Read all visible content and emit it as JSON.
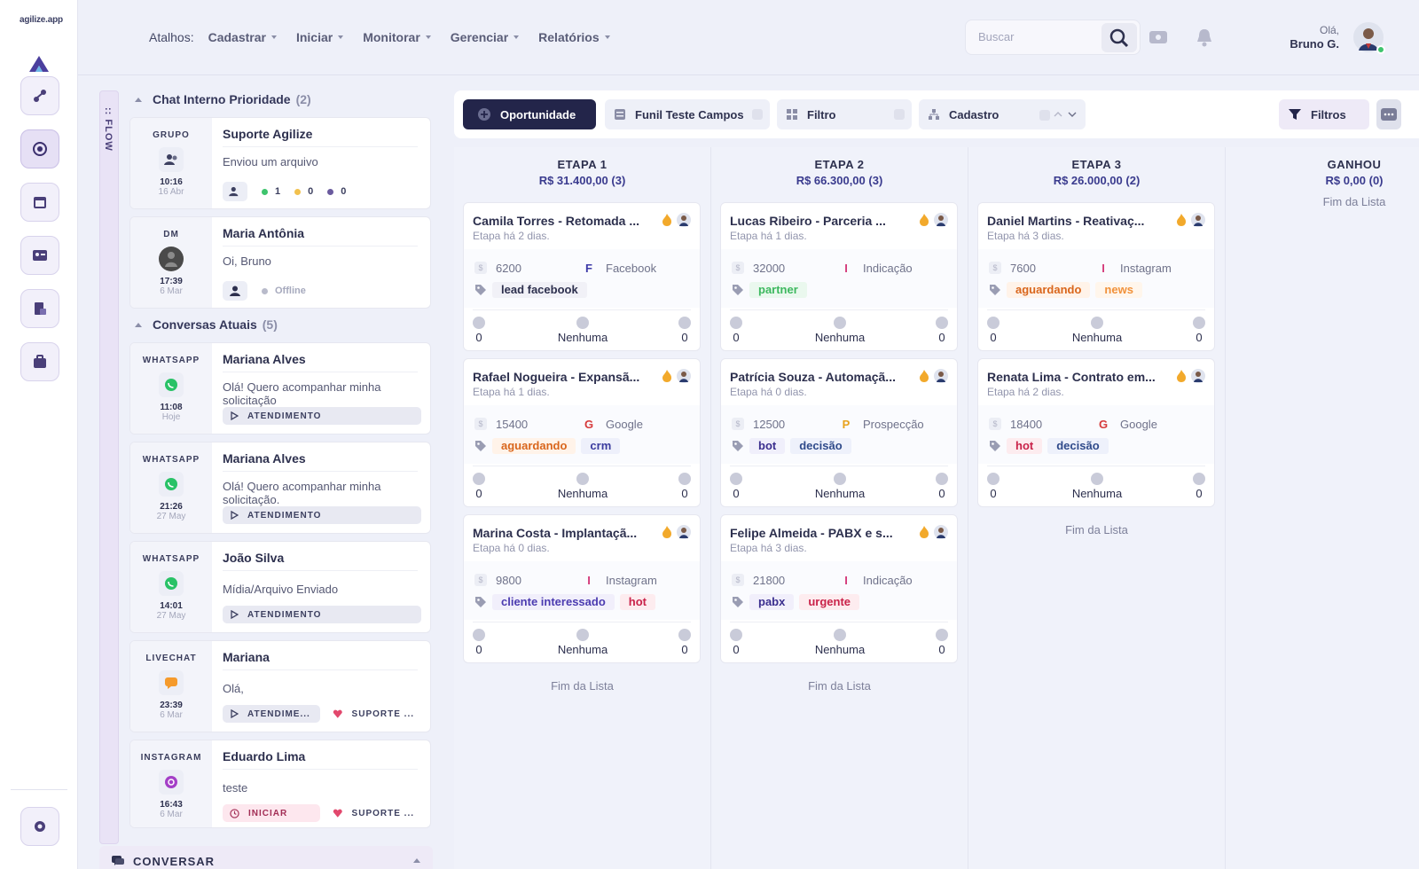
{
  "app": {
    "logo_text": "agilize.app"
  },
  "topbar": {
    "shortcuts_label": "Atalhos:",
    "menus": [
      "Cadastrar",
      "Iniciar",
      "Monitorar",
      "Gerenciar",
      "Relatórios"
    ],
    "search_placeholder": "Buscar",
    "greeting": "Olá,",
    "user_name": "Bruno G."
  },
  "chat": {
    "flow_label": ":: FLOW",
    "priority_title": "Chat Interno Prioridade",
    "priority_count": "(2)",
    "current_title": "Conversas Atuais",
    "current_count": "(5)",
    "conversar_label": "CONVERSAR",
    "priority_items": [
      {
        "channel": "GRUPO",
        "time": "10:16",
        "date": "16 Abr",
        "name": "Suporte Agilize",
        "message": "Enviou um arquivo",
        "stats": [
          "1",
          "0",
          "0"
        ]
      },
      {
        "channel": "DM",
        "time": "17:39",
        "date": "6 Mar",
        "name": "Maria Antônia",
        "message": "Oi, Bruno",
        "status": "Offline"
      }
    ],
    "current_items": [
      {
        "channel": "WHATSAPP",
        "time": "11:08",
        "date": "Hoje",
        "name": "Mariana Alves",
        "message": "Olá! Quero acompanhar minha solicitação",
        "tags": [
          "ATENDIMENTO"
        ]
      },
      {
        "channel": "WHATSAPP",
        "time": "21:26",
        "date": "27 May",
        "name": "Mariana Alves",
        "message": "Olá! Quero acompanhar minha solicitação.",
        "tags": [
          "ATENDIMENTO"
        ]
      },
      {
        "channel": "WHATSAPP",
        "time": "14:01",
        "date": "27 May",
        "name": "João Silva",
        "message": "Mídia/Arquivo Enviado",
        "tags": [
          "ATENDIMENTO"
        ]
      },
      {
        "channel": "LIVECHAT",
        "time": "23:39",
        "date": "6 Mar",
        "name": "Mariana",
        "message": "Olá,",
        "tags": [
          "ATENDIME...",
          "SUPORTE ..."
        ]
      },
      {
        "channel": "INSTAGRAM",
        "time": "16:43",
        "date": "6 Mar",
        "name": "Eduardo Lima",
        "message": "teste",
        "tags": [
          "INICIAR",
          "SUPORTE ..."
        ]
      }
    ]
  },
  "filters": {
    "oportunidade": "Oportunidade",
    "funil": "Funil Teste Campos",
    "filtro": "Filtro",
    "cadastro": "Cadastro",
    "filtros_button": "Filtros"
  },
  "kanban": {
    "end_label": "Fim da Lista",
    "columns": [
      {
        "title": "ETAPA 1",
        "sum": "R$ 31.400,00 (3)",
        "deals": [
          {
            "title": "Camila Torres - Retomada ...",
            "sub": "Etapa há 2 dias.",
            "value": "6200",
            "src_letter": "F",
            "src": "Facebook",
            "tags": [
              "lead facebook"
            ],
            "foot": [
              "0",
              "Nenhuma",
              "0"
            ]
          },
          {
            "title": "Rafael Nogueira - Expansã...",
            "sub": "Etapa há 1 dias.",
            "value": "15400",
            "src_letter": "G",
            "src": "Google",
            "tags": [
              "aguardando",
              "crm"
            ],
            "foot": [
              "0",
              "Nenhuma",
              "0"
            ]
          },
          {
            "title": "Marina Costa - Implantaçã...",
            "sub": "Etapa há 0 dias.",
            "value": "9800",
            "src_letter": "I",
            "src": "Instagram",
            "tags": [
              "cliente interessado",
              "hot"
            ],
            "foot": [
              "0",
              "Nenhuma",
              "0"
            ]
          }
        ]
      },
      {
        "title": "ETAPA 2",
        "sum": "R$ 66.300,00 (3)",
        "deals": [
          {
            "title": "Lucas Ribeiro - Parceria ...",
            "sub": "Etapa há 1 dias.",
            "value": "32000",
            "src_letter": "I",
            "src": "Indicação",
            "tags": [
              "partner"
            ],
            "foot": [
              "0",
              "Nenhuma",
              "0"
            ]
          },
          {
            "title": "Patrícia Souza - Automaçã...",
            "sub": "Etapa há 0 dias.",
            "value": "12500",
            "src_letter": "P",
            "src": "Prospecção",
            "tags": [
              "bot",
              "decisão"
            ],
            "foot": [
              "0",
              "Nenhuma",
              "0"
            ]
          },
          {
            "title": "Felipe Almeida - PABX e s...",
            "sub": "Etapa há 3 dias.",
            "value": "21800",
            "src_letter": "I",
            "src": "Indicação",
            "tags": [
              "pabx",
              "urgente"
            ],
            "foot": [
              "0",
              "Nenhuma",
              "0"
            ]
          }
        ]
      },
      {
        "title": "ETAPA 3",
        "sum": "R$ 26.000,00 (2)",
        "deals": [
          {
            "title": "Daniel Martins - Reativaç...",
            "sub": "Etapa há 3 dias.",
            "value": "7600",
            "src_letter": "I",
            "src": "Instagram",
            "tags": [
              "aguardando",
              "news"
            ],
            "foot": [
              "0",
              "Nenhuma",
              "0"
            ]
          },
          {
            "title": "Renata Lima - Contrato em...",
            "sub": "Etapa há 2 dias.",
            "value": "18400",
            "src_letter": "G",
            "src": "Google",
            "tags": [
              "hot",
              "decisão"
            ],
            "foot": [
              "0",
              "Nenhuma",
              "0"
            ]
          }
        ]
      },
      {
        "title": "GANHOU",
        "sum": "R$ 0,00 (0)",
        "deals": []
      }
    ]
  }
}
